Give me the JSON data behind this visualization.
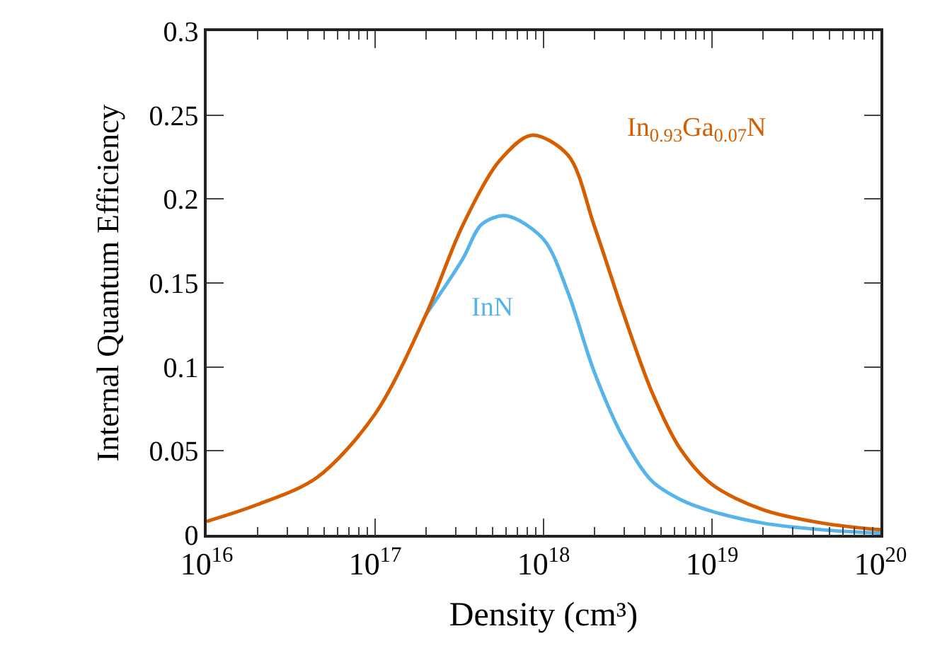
{
  "chart_data": {
    "type": "line",
    "xlabel": "Density (cm³)",
    "ylabel": "Internal Quantum Efficiency",
    "log": "x",
    "xlim": [
      1e+16,
      1e+20
    ],
    "xticks": [
      {
        "value": 1e+16,
        "label": "10$^{16}$"
      },
      {
        "value": 1e+17,
        "label": "10$^{17}$"
      },
      {
        "value": 1e+18,
        "label": "10$^{18}$"
      },
      {
        "value": 1e+19,
        "label": "10$^{19}$"
      },
      {
        "value": 1e+20,
        "label": "10$^{20}$"
      }
    ],
    "ylim": [
      0,
      0.3
    ],
    "yticks": [
      0,
      0.05,
      0.1,
      0.15,
      0.2,
      0.25,
      0.3
    ],
    "legend": false,
    "marker": "none",
    "line_style": "solid",
    "series": [
      {
        "name": "In$_{0.93}$Ga$_{0.07}$N",
        "color": "#d55e00",
        "x": [
          1e+16,
          2e+16,
          4.5e+16,
          1e+17,
          2e+17,
          3.3e+17,
          5.5e+17,
          8.5e+17,
          1.4e+18,
          2e+18,
          3e+18,
          4.4e+18,
          6.5e+18,
          1e+19,
          2e+19,
          4.5e+19,
          1e+20
        ],
        "values": [
          0.008,
          0.018,
          0.034,
          0.072,
          0.131,
          0.184,
          0.223,
          0.238,
          0.226,
          0.184,
          0.131,
          0.085,
          0.051,
          0.03,
          0.015,
          0.007,
          0.003
        ]
      },
      {
        "name": "InN",
        "color": "#56b4e9",
        "x": [
          2e+17,
          3.3e+17,
          4.3e+17,
          6e+17,
          1e+18,
          1.4e+18,
          2e+18,
          3e+18,
          4.4e+18,
          6.5e+18,
          1e+19,
          2e+19,
          4.5e+19,
          1e+20
        ],
        "values": [
          0.131,
          0.164,
          0.185,
          0.19,
          0.176,
          0.144,
          0.097,
          0.057,
          0.032,
          0.021,
          0.014,
          0.007,
          0.003,
          0.001
        ]
      }
    ]
  }
}
